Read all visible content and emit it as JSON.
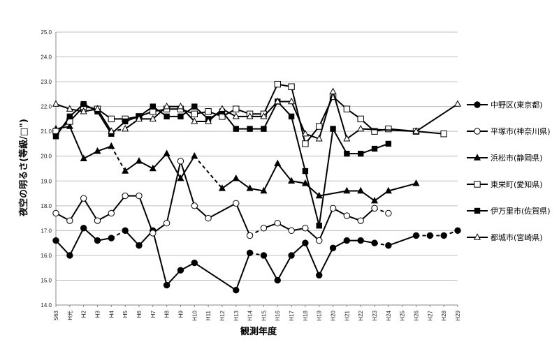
{
  "chart_data": {
    "type": "line",
    "ylabel": "夜空の明るさ(等級/□\")",
    "xlabel": "観測年度",
    "ylim": [
      14.0,
      25.0
    ],
    "yticks": [
      "14.0",
      "15.0",
      "16.0",
      "17.0",
      "18.0",
      "19.0",
      "20.0",
      "21.0",
      "22.0",
      "23.0",
      "24.0",
      "25.0"
    ],
    "categories": [
      "S63",
      "H元",
      "H2",
      "H3",
      "H4",
      "H5",
      "H6",
      "H7",
      "H8",
      "H9",
      "H10",
      "H11",
      "H12",
      "H13",
      "H14",
      "H15",
      "H16",
      "H17",
      "H18",
      "H19",
      "H20",
      "H21",
      "H22",
      "H23",
      "H24",
      "H25",
      "H26",
      "H27",
      "H28",
      "H29"
    ],
    "grid": "horizontal",
    "legend_position": "right",
    "series": [
      {
        "name": "中野区(東京都)",
        "marker": "circle-filled",
        "values": [
          16.6,
          16.0,
          17.1,
          16.6,
          16.7,
          17.0,
          16.4,
          17.0,
          14.8,
          15.4,
          15.7,
          null,
          null,
          14.6,
          16.1,
          16.0,
          15.0,
          16.0,
          16.5,
          15.2,
          16.3,
          16.6,
          16.6,
          16.5,
          16.4,
          null,
          16.8,
          16.8,
          16.8,
          17.0
        ],
        "dashed_segments": [
          [
            4,
            5
          ],
          [
            14,
            15
          ],
          [
            23,
            24
          ],
          [
            26,
            27
          ],
          [
            27,
            28
          ],
          [
            28,
            29
          ]
        ]
      },
      {
        "name": "平塚市(神奈川県)",
        "marker": "circle-open",
        "values": [
          17.7,
          17.4,
          18.3,
          17.4,
          17.7,
          18.4,
          18.4,
          16.9,
          17.3,
          19.8,
          18.0,
          17.5,
          null,
          18.1,
          16.8,
          17.1,
          17.3,
          17.0,
          17.1,
          16.6,
          17.9,
          17.6,
          17.4,
          17.9,
          17.7,
          null,
          null,
          null,
          null,
          null
        ],
        "dashed_segments": [
          [
            14,
            15
          ],
          [
            23,
            24
          ]
        ]
      },
      {
        "name": "浜松市(静岡県)",
        "marker": "triangle-filled",
        "values": [
          21.1,
          21.2,
          19.9,
          20.2,
          20.4,
          19.4,
          19.8,
          19.5,
          20.1,
          19.1,
          20.0,
          null,
          18.7,
          19.1,
          18.7,
          18.6,
          19.7,
          19.0,
          18.9,
          18.4,
          null,
          18.6,
          18.6,
          18.2,
          18.6,
          null,
          18.9,
          null,
          null,
          null
        ],
        "dashed_segments": [
          [
            4,
            5
          ],
          [
            10,
            12
          ]
        ]
      },
      {
        "name": "東栄町(愛知県)",
        "marker": "square-open",
        "values": [
          21.0,
          21.4,
          22.0,
          21.9,
          21.5,
          21.5,
          21.6,
          21.8,
          21.9,
          21.9,
          21.7,
          21.8,
          21.6,
          21.9,
          21.7,
          21.7,
          22.9,
          22.8,
          20.5,
          21.2,
          22.4,
          21.9,
          21.5,
          21.0,
          21.1,
          null,
          21.0,
          null,
          20.9,
          null
        ],
        "dashed_segments": []
      },
      {
        "name": "伊万里市(佐賀県)",
        "marker": "square-filled",
        "values": [
          20.8,
          21.6,
          22.1,
          21.8,
          20.9,
          21.4,
          21.6,
          22.0,
          21.6,
          21.6,
          22.0,
          21.5,
          21.8,
          21.1,
          21.1,
          21.1,
          22.2,
          21.6,
          19.4,
          17.2,
          21.1,
          20.1,
          20.1,
          20.3,
          20.5,
          null,
          null,
          null,
          null,
          null
        ],
        "dashed_segments": []
      },
      {
        "name": "都城市(宮崎県)",
        "marker": "triangle-open",
        "values": [
          22.1,
          21.9,
          21.8,
          21.9,
          21.0,
          21.1,
          21.5,
          21.5,
          22.0,
          22.0,
          21.4,
          21.4,
          21.9,
          21.6,
          21.6,
          21.6,
          22.2,
          22.2,
          20.9,
          20.7,
          22.6,
          20.7,
          21.1,
          null,
          null,
          null,
          21.0,
          null,
          null,
          22.1
        ],
        "dashed_segments": [
          [
            4,
            5
          ]
        ]
      }
    ]
  }
}
